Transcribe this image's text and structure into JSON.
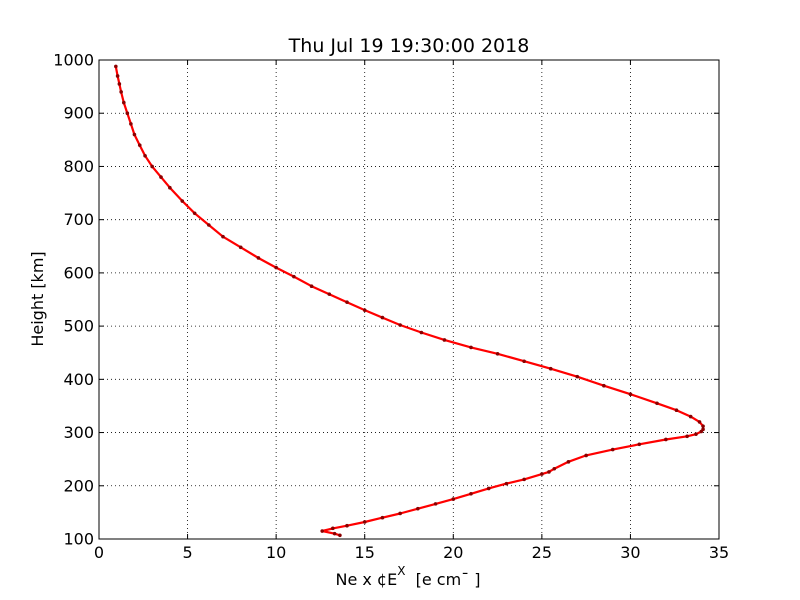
{
  "chart_data": {
    "type": "line",
    "title": "Thu Jul 19 19:30:00 2018",
    "xlabel": "Ne x ¢E",
    "xlabel_sup": "X",
    "xlabel_unit": "  [e cm¯ ]",
    "ylabel": "Height [km]",
    "xlim": [
      0,
      35
    ],
    "ylim": [
      100,
      1000
    ],
    "xticks": [
      0,
      5,
      10,
      15,
      20,
      25,
      30,
      35
    ],
    "yticks": [
      100,
      200,
      300,
      400,
      500,
      600,
      700,
      800,
      900,
      1000
    ],
    "grid": true,
    "colors": {
      "line": "#ff0000",
      "marker": "#8b0000"
    },
    "series": [
      {
        "x": [
          13.6,
          13.3,
          12.6,
          13.2,
          14.0,
          15.0,
          16.0,
          17.0,
          18.0,
          19.0,
          20.0,
          21.0,
          22.0,
          23.0,
          24.0,
          25.0,
          25.4,
          25.7,
          26.5,
          27.5,
          29.0,
          30.5,
          32.0,
          33.2,
          33.7,
          34.0,
          34.1,
          34.1,
          33.9,
          33.4,
          32.6,
          31.5,
          30.0,
          28.5,
          27.0,
          25.5,
          24.0,
          22.5,
          21.0,
          19.5,
          18.2,
          17.0,
          16.0,
          15.0,
          14.0,
          13.0,
          12.0,
          11.0,
          10.0,
          9.0,
          8.0,
          7.0,
          6.2,
          5.4,
          4.7,
          4.0,
          3.5,
          3.0,
          2.6,
          2.3,
          2.0,
          1.8,
          1.6,
          1.4,
          1.25,
          1.15,
          1.05,
          0.95
        ],
        "y": [
          107,
          110,
          115,
          120,
          125,
          132,
          140,
          148,
          157,
          166,
          175,
          185,
          195,
          204,
          212,
          222,
          226,
          232,
          245,
          257,
          268,
          278,
          287,
          293,
          297,
          302,
          306,
          312,
          320,
          330,
          342,
          355,
          372,
          388,
          405,
          420,
          434,
          448,
          460,
          474,
          488,
          502,
          516,
          530,
          545,
          560,
          575,
          593,
          610,
          628,
          648,
          668,
          690,
          712,
          735,
          760,
          780,
          800,
          820,
          840,
          860,
          880,
          900,
          920,
          940,
          955,
          970,
          988
        ]
      }
    ]
  }
}
